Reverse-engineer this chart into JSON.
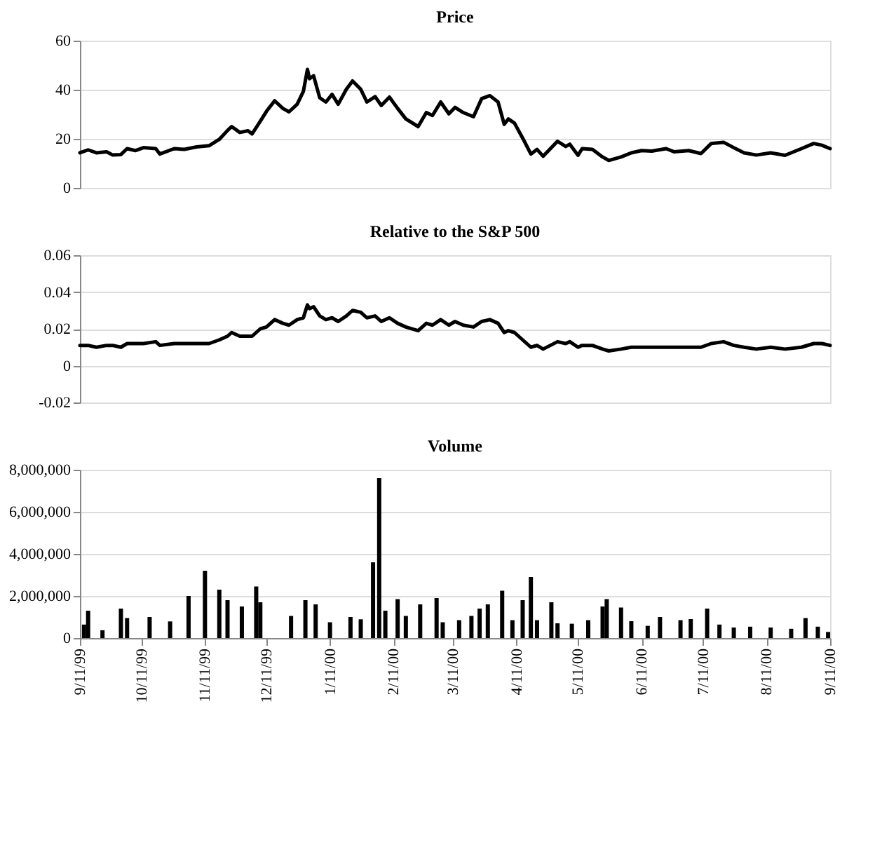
{
  "chart_data": [
    {
      "type": "line",
      "title": "Price",
      "color": "#000000",
      "grid": "y",
      "tick_labels": "y",
      "x": [
        "1999-09-11",
        "1999-09-15",
        "1999-09-19",
        "1999-09-24",
        "1999-09-27",
        "1999-10-01",
        "1999-10-04",
        "1999-10-08",
        "1999-10-12",
        "1999-10-18",
        "1999-10-20",
        "1999-10-27",
        "1999-11-01",
        "1999-11-07",
        "1999-11-13",
        "1999-11-18",
        "1999-11-22",
        "1999-11-24",
        "1999-11-28",
        "1999-12-02",
        "1999-12-04",
        "1999-12-08",
        "1999-12-11",
        "1999-12-15",
        "1999-12-19",
        "1999-12-22",
        "1999-12-26",
        "1999-12-29",
        "1999-12-31",
        "2000-01-01",
        "2000-01-03",
        "2000-01-06",
        "2000-01-09",
        "2000-01-12",
        "2000-01-15",
        "2000-01-19",
        "2000-01-22",
        "2000-01-26",
        "2000-01-29",
        "2000-02-02",
        "2000-02-05",
        "2000-02-09",
        "2000-02-13",
        "2000-02-17",
        "2000-02-23",
        "2000-02-27",
        "2000-03-01",
        "2000-03-05",
        "2000-03-09",
        "2000-03-12",
        "2000-03-16",
        "2000-03-21",
        "2000-03-25",
        "2000-03-29",
        "2000-04-02",
        "2000-04-05",
        "2000-04-07",
        "2000-04-10",
        "2000-04-14",
        "2000-04-18",
        "2000-04-21",
        "2000-04-24",
        "2000-05-01",
        "2000-05-05",
        "2000-05-07",
        "2000-05-11",
        "2000-05-13",
        "2000-05-18",
        "2000-05-23",
        "2000-05-26",
        "2000-06-01",
        "2000-06-06",
        "2000-06-11",
        "2000-06-16",
        "2000-06-23",
        "2000-06-27",
        "2000-07-04",
        "2000-07-10",
        "2000-07-15",
        "2000-07-21",
        "2000-07-26",
        "2000-07-31",
        "2000-08-06",
        "2000-08-13",
        "2000-08-20",
        "2000-08-28",
        "2000-09-03",
        "2000-09-07",
        "2000-09-11"
      ],
      "values": [
        14.3,
        15.5,
        14.3,
        14.7,
        13.4,
        13.6,
        16,
        15.2,
        16.4,
        16,
        13.8,
        16,
        15.7,
        16.7,
        17.2,
        19.8,
        23.4,
        25,
        22.6,
        23.3,
        22,
        27.2,
        31.2,
        35.5,
        32.4,
        31,
        34.1,
        39.3,
        48.3,
        44.5,
        45.7,
        36.7,
        35,
        38.1,
        34.1,
        40.2,
        43.6,
        40.2,
        35,
        37.2,
        33.6,
        37,
        32.4,
        28.1,
        25,
        30.7,
        29.5,
        35,
        30.2,
        32.8,
        30.7,
        29,
        36.4,
        37.6,
        35,
        25.9,
        28.1,
        26.4,
        20.3,
        13.8,
        15.7,
        12.9,
        19,
        16.9,
        17.8,
        13.3,
        16,
        15.7,
        12.6,
        11.2,
        12.6,
        14.3,
        15.2,
        15,
        16,
        14.7,
        15.2,
        14,
        18.1,
        18.6,
        16.4,
        14.3,
        13.4,
        14.3,
        13.3,
        16,
        18.1,
        17.4,
        16
      ],
      "xlim": [
        "1999-09-11",
        "2000-09-11"
      ],
      "ylim": [
        0,
        60
      ],
      "yticks": [
        0,
        20,
        40,
        60
      ]
    },
    {
      "type": "line",
      "title": "Relative to the S&P 500",
      "color": "#000000",
      "grid": "y",
      "tick_labels": "y",
      "x": [
        "1999-09-11",
        "1999-09-15",
        "1999-09-19",
        "1999-09-24",
        "1999-09-27",
        "1999-10-01",
        "1999-10-04",
        "1999-10-08",
        "1999-10-12",
        "1999-10-18",
        "1999-10-20",
        "1999-10-27",
        "1999-11-01",
        "1999-11-07",
        "1999-11-13",
        "1999-11-18",
        "1999-11-22",
        "1999-11-24",
        "1999-11-28",
        "1999-12-02",
        "1999-12-04",
        "1999-12-08",
        "1999-12-11",
        "1999-12-15",
        "1999-12-19",
        "1999-12-22",
        "1999-12-26",
        "1999-12-29",
        "1999-12-31",
        "2000-01-01",
        "2000-01-03",
        "2000-01-06",
        "2000-01-09",
        "2000-01-12",
        "2000-01-15",
        "2000-01-19",
        "2000-01-22",
        "2000-01-26",
        "2000-01-29",
        "2000-02-02",
        "2000-02-05",
        "2000-02-09",
        "2000-02-13",
        "2000-02-17",
        "2000-02-23",
        "2000-02-27",
        "2000-03-01",
        "2000-03-05",
        "2000-03-09",
        "2000-03-12",
        "2000-03-16",
        "2000-03-21",
        "2000-03-25",
        "2000-03-29",
        "2000-04-02",
        "2000-04-05",
        "2000-04-07",
        "2000-04-10",
        "2000-04-14",
        "2000-04-18",
        "2000-04-21",
        "2000-04-24",
        "2000-05-01",
        "2000-05-05",
        "2000-05-07",
        "2000-05-11",
        "2000-05-13",
        "2000-05-18",
        "2000-05-23",
        "2000-05-26",
        "2000-06-01",
        "2000-06-06",
        "2000-06-11",
        "2000-06-16",
        "2000-06-23",
        "2000-06-27",
        "2000-07-04",
        "2000-07-10",
        "2000-07-15",
        "2000-07-21",
        "2000-07-26",
        "2000-07-31",
        "2000-08-06",
        "2000-08-13",
        "2000-08-20",
        "2000-08-28",
        "2000-09-03",
        "2000-09-07",
        "2000-09-11"
      ],
      "values": [
        0.011,
        0.011,
        0.01,
        0.011,
        0.011,
        0.01,
        0.012,
        0.012,
        0.012,
        0.013,
        0.011,
        0.012,
        0.012,
        0.012,
        0.012,
        0.014,
        0.016,
        0.018,
        0.016,
        0.016,
        0.016,
        0.02,
        0.021,
        0.025,
        0.023,
        0.022,
        0.025,
        0.026,
        0.033,
        0.031,
        0.032,
        0.027,
        0.025,
        0.026,
        0.024,
        0.027,
        0.03,
        0.029,
        0.026,
        0.027,
        0.024,
        0.026,
        0.023,
        0.021,
        0.019,
        0.023,
        0.022,
        0.025,
        0.022,
        0.024,
        0.022,
        0.021,
        0.024,
        0.025,
        0.023,
        0.018,
        0.019,
        0.018,
        0.014,
        0.01,
        0.011,
        0.009,
        0.013,
        0.012,
        0.013,
        0.01,
        0.011,
        0.011,
        0.009,
        0.008,
        0.009,
        0.01,
        0.01,
        0.01,
        0.01,
        0.01,
        0.01,
        0.01,
        0.012,
        0.013,
        0.011,
        0.01,
        0.009,
        0.01,
        0.009,
        0.01,
        0.012,
        0.012,
        0.011
      ],
      "xlim": [
        "1999-09-11",
        "2000-09-11"
      ],
      "ylim": [
        -0.02,
        0.06
      ],
      "yticks": [
        -0.02,
        0,
        0.02,
        0.04,
        0.06
      ]
    },
    {
      "type": "bar",
      "title": "Volume",
      "color": "#000000",
      "grid": "y",
      "x": [
        "1999-09-13",
        "1999-09-15",
        "1999-09-22",
        "1999-10-01",
        "1999-10-04",
        "1999-10-15",
        "1999-10-25",
        "1999-11-03",
        "1999-11-11",
        "1999-11-18",
        "1999-11-22",
        "1999-11-29",
        "1999-12-06",
        "1999-12-08",
        "1999-12-23",
        "1999-12-30",
        "2000-01-04",
        "2000-01-11",
        "2000-01-21",
        "2000-01-26",
        "2000-02-01",
        "2000-02-04",
        "2000-02-07",
        "2000-02-13",
        "2000-02-17",
        "2000-02-24",
        "2000-03-03",
        "2000-03-06",
        "2000-03-14",
        "2000-03-20",
        "2000-03-24",
        "2000-03-28",
        "2000-04-04",
        "2000-04-09",
        "2000-04-14",
        "2000-04-18",
        "2000-04-21",
        "2000-04-28",
        "2000-05-01",
        "2000-05-08",
        "2000-05-16",
        "2000-05-23",
        "2000-05-25",
        "2000-06-01",
        "2000-06-06",
        "2000-06-14",
        "2000-06-20",
        "2000-06-30",
        "2000-07-05",
        "2000-07-13",
        "2000-07-19",
        "2000-07-26",
        "2000-08-03",
        "2000-08-13",
        "2000-08-23",
        "2000-08-30",
        "2000-09-05",
        "2000-09-10"
      ],
      "values": [
        640000,
        1300000,
        370000,
        1400000,
        950000,
        1000000,
        790000,
        2000000,
        3200000,
        2300000,
        1800000,
        1500000,
        2450000,
        1700000,
        1050000,
        1800000,
        1600000,
        750000,
        1000000,
        890000,
        3600000,
        7600000,
        1300000,
        1850000,
        1050000,
        1600000,
        1900000,
        750000,
        850000,
        1050000,
        1400000,
        1600000,
        2250000,
        850000,
        1800000,
        2900000,
        850000,
        1700000,
        700000,
        680000,
        850000,
        1500000,
        1850000,
        1450000,
        800000,
        580000,
        1000000,
        850000,
        900000,
        1400000,
        640000,
        500000,
        540000,
        500000,
        440000,
        950000,
        540000,
        290000
      ],
      "xlim": [
        "1999-09-11",
        "2000-09-11"
      ],
      "xticks": [
        {
          "value": "1999-09-11",
          "label": "9/11/99"
        },
        {
          "value": "1999-10-11",
          "label": "10/11/99"
        },
        {
          "value": "1999-11-11",
          "label": "11/11/99"
        },
        {
          "value": "1999-12-11",
          "label": "12/11/99"
        },
        {
          "value": "2000-01-11",
          "label": "1/11/00"
        },
        {
          "value": "2000-02-11",
          "label": "2/11/00"
        },
        {
          "value": "2000-03-11",
          "label": "3/11/00"
        },
        {
          "value": "2000-04-11",
          "label": "4/11/00"
        },
        {
          "value": "2000-05-11",
          "label": "5/11/00"
        },
        {
          "value": "2000-06-11",
          "label": "6/11/00"
        },
        {
          "value": "2000-07-11",
          "label": "7/11/00"
        },
        {
          "value": "2000-08-11",
          "label": "8/11/00"
        },
        {
          "value": "2000-09-11",
          "label": "9/11/00"
        }
      ],
      "ylim": [
        0,
        8000000
      ],
      "yticks": [
        0,
        {
          "value": 2000000,
          "label": "2,000,000"
        },
        {
          "value": 4000000,
          "label": "4,000,000"
        },
        {
          "value": 6000000,
          "label": "6,000,000"
        },
        {
          "value": 8000000,
          "label": "8,000,000"
        }
      ]
    }
  ]
}
